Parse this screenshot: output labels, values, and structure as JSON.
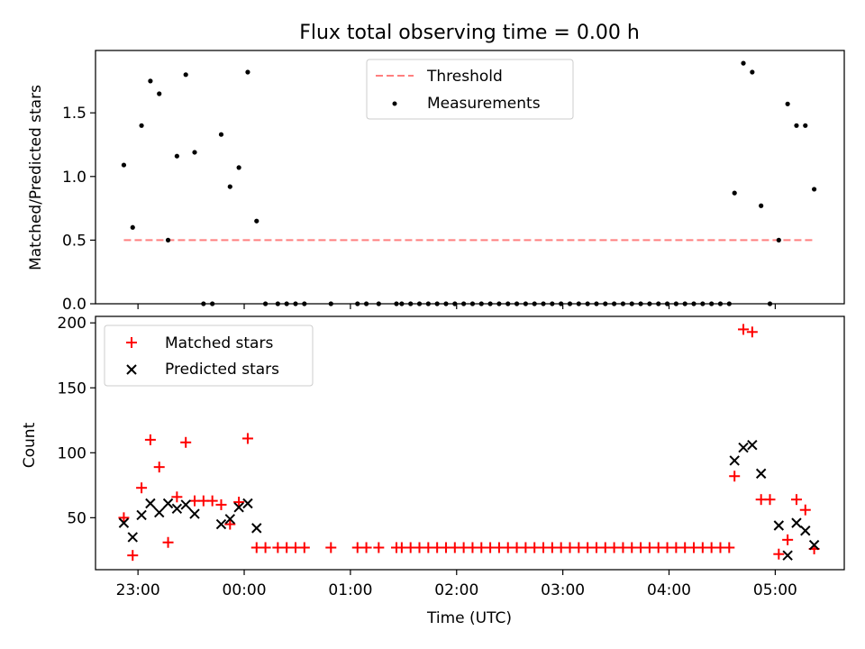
{
  "title": "Flux total observing time = 0.00 h",
  "colors": {
    "threshold": "#ff7f7f",
    "measurement": "#000000",
    "matched": "#ff0000",
    "predicted": "#000000"
  },
  "chart_data": [
    {
      "type": "scatter",
      "ylabel": "Matched/Predicted stars",
      "xlim": [
        22.6,
        5.65
      ],
      "ylim": [
        0,
        1.99
      ],
      "yticks": [
        0,
        0.5,
        1.0,
        1.5
      ],
      "ytick_labels": [
        "0.0",
        "0.5",
        "1.0",
        "1.5"
      ],
      "legend_position": "upper-center",
      "series": [
        {
          "name": "Threshold",
          "style": "dashed-line",
          "points": [
            [
              "22:52",
              0.5
            ],
            [
              "05:22",
              0.5
            ]
          ]
        },
        {
          "name": "Measurements",
          "style": "dot",
          "points": [
            [
              "22:52",
              1.09
            ],
            [
              "22:57",
              0.6
            ],
            [
              "23:02",
              1.4
            ],
            [
              "23:07",
              1.75
            ],
            [
              "23:12",
              1.65
            ],
            [
              "23:17",
              0.5
            ],
            [
              "23:22",
              1.16
            ],
            [
              "23:27",
              1.8
            ],
            [
              "23:32",
              1.19
            ],
            [
              "23:37",
              0.0
            ],
            [
              "23:42",
              0.0
            ],
            [
              "23:47",
              1.33
            ],
            [
              "23:52",
              0.92
            ],
            [
              "23:57",
              1.07
            ],
            [
              "00:02",
              1.82
            ],
            [
              "00:07",
              0.65
            ],
            [
              "00:12",
              0.0
            ],
            [
              "00:19",
              0.0
            ],
            [
              "00:24",
              0.0
            ],
            [
              "00:29",
              0.0
            ],
            [
              "00:34",
              0.0
            ],
            [
              "00:49",
              0.0
            ],
            [
              "01:04",
              0.0
            ],
            [
              "01:09",
              0.0
            ],
            [
              "01:16",
              0.0
            ],
            [
              "01:26",
              0.0
            ],
            [
              "01:29",
              0.0
            ],
            [
              "01:34",
              0.0
            ],
            [
              "01:39",
              0.0
            ],
            [
              "01:44",
              0.0
            ],
            [
              "01:49",
              0.0
            ],
            [
              "01:54",
              0.0
            ],
            [
              "01:59",
              0.0
            ],
            [
              "02:04",
              0.0
            ],
            [
              "02:09",
              0.0
            ],
            [
              "02:14",
              0.0
            ],
            [
              "02:19",
              0.0
            ],
            [
              "02:24",
              0.0
            ],
            [
              "02:29",
              0.0
            ],
            [
              "02:34",
              0.0
            ],
            [
              "02:39",
              0.0
            ],
            [
              "02:44",
              0.0
            ],
            [
              "02:49",
              0.0
            ],
            [
              "02:54",
              0.0
            ],
            [
              "02:59",
              0.0
            ],
            [
              "03:04",
              0.0
            ],
            [
              "03:09",
              0.0
            ],
            [
              "03:14",
              0.0
            ],
            [
              "03:19",
              0.0
            ],
            [
              "03:24",
              0.0
            ],
            [
              "03:29",
              0.0
            ],
            [
              "03:34",
              0.0
            ],
            [
              "03:39",
              0.0
            ],
            [
              "03:44",
              0.0
            ],
            [
              "03:49",
              0.0
            ],
            [
              "03:54",
              0.0
            ],
            [
              "03:59",
              0.0
            ],
            [
              "04:04",
              0.0
            ],
            [
              "04:09",
              0.0
            ],
            [
              "04:14",
              0.0
            ],
            [
              "04:19",
              0.0
            ],
            [
              "04:24",
              0.0
            ],
            [
              "04:29",
              0.0
            ],
            [
              "04:34",
              0.0
            ],
            [
              "04:37",
              0.87
            ],
            [
              "04:42",
              1.89
            ],
            [
              "04:47",
              1.82
            ],
            [
              "04:52",
              0.77
            ],
            [
              "04:57",
              0.0
            ],
            [
              "05:02",
              0.5
            ],
            [
              "05:07",
              1.57
            ],
            [
              "05:12",
              1.4
            ],
            [
              "05:17",
              1.4
            ],
            [
              "05:22",
              0.9
            ]
          ]
        }
      ]
    },
    {
      "type": "scatter",
      "xlabel": "Time (UTC)",
      "ylabel": "Count",
      "xlim": [
        22.6,
        5.65
      ],
      "ylim": [
        10,
        205
      ],
      "xticks": [
        "23:00",
        "00:00",
        "01:00",
        "02:00",
        "03:00",
        "04:00",
        "05:00"
      ],
      "yticks": [
        50,
        100,
        150,
        200
      ],
      "ytick_labels": [
        "50",
        "100",
        "150",
        "200"
      ],
      "legend_position": "upper-left",
      "series": [
        {
          "name": "Matched stars",
          "style": "plus",
          "points": [
            [
              "22:52",
              50
            ],
            [
              "22:57",
              21
            ],
            [
              "23:02",
              73
            ],
            [
              "23:07",
              110
            ],
            [
              "23:12",
              89
            ],
            [
              "23:17",
              31
            ],
            [
              "23:22",
              66
            ],
            [
              "23:27",
              108
            ],
            [
              "23:32",
              63
            ],
            [
              "23:37",
              63
            ],
            [
              "23:42",
              63
            ],
            [
              "23:47",
              60
            ],
            [
              "23:52",
              45
            ],
            [
              "23:57",
              62
            ],
            [
              "00:02",
              111
            ],
            [
              "00:07",
              27
            ],
            [
              "00:12",
              27
            ],
            [
              "00:19",
              27
            ],
            [
              "00:24",
              27
            ],
            [
              "00:29",
              27
            ],
            [
              "00:34",
              27
            ],
            [
              "00:49",
              27
            ],
            [
              "01:04",
              27
            ],
            [
              "01:09",
              27
            ],
            [
              "01:16",
              27
            ],
            [
              "01:26",
              27
            ],
            [
              "01:29",
              27
            ],
            [
              "01:34",
              27
            ],
            [
              "01:39",
              27
            ],
            [
              "01:44",
              27
            ],
            [
              "01:49",
              27
            ],
            [
              "01:54",
              27
            ],
            [
              "01:59",
              27
            ],
            [
              "02:04",
              27
            ],
            [
              "02:09",
              27
            ],
            [
              "02:14",
              27
            ],
            [
              "02:19",
              27
            ],
            [
              "02:24",
              27
            ],
            [
              "02:29",
              27
            ],
            [
              "02:34",
              27
            ],
            [
              "02:39",
              27
            ],
            [
              "02:44",
              27
            ],
            [
              "02:49",
              27
            ],
            [
              "02:54",
              27
            ],
            [
              "02:59",
              27
            ],
            [
              "03:04",
              27
            ],
            [
              "03:09",
              27
            ],
            [
              "03:14",
              27
            ],
            [
              "03:19",
              27
            ],
            [
              "03:24",
              27
            ],
            [
              "03:29",
              27
            ],
            [
              "03:34",
              27
            ],
            [
              "03:39",
              27
            ],
            [
              "03:44",
              27
            ],
            [
              "03:49",
              27
            ],
            [
              "03:54",
              27
            ],
            [
              "03:59",
              27
            ],
            [
              "04:04",
              27
            ],
            [
              "04:09",
              27
            ],
            [
              "04:14",
              27
            ],
            [
              "04:19",
              27
            ],
            [
              "04:24",
              27
            ],
            [
              "04:29",
              27
            ],
            [
              "04:34",
              27
            ],
            [
              "04:37",
              82
            ],
            [
              "04:42",
              195
            ],
            [
              "04:47",
              193
            ],
            [
              "04:52",
              64
            ],
            [
              "04:57",
              64
            ],
            [
              "05:02",
              22
            ],
            [
              "05:07",
              33
            ],
            [
              "05:12",
              64
            ],
            [
              "05:17",
              56
            ],
            [
              "05:22",
              26
            ]
          ]
        },
        {
          "name": "Predicted stars",
          "style": "cross",
          "points": [
            [
              "22:52",
              46
            ],
            [
              "22:57",
              35
            ],
            [
              "23:02",
              52
            ],
            [
              "23:07",
              61
            ],
            [
              "23:12",
              54
            ],
            [
              "23:17",
              61
            ],
            [
              "23:22",
              57
            ],
            [
              "23:27",
              60
            ],
            [
              "23:32",
              53
            ],
            [
              "23:47",
              45
            ],
            [
              "23:52",
              49
            ],
            [
              "23:57",
              58
            ],
            [
              "00:02",
              61
            ],
            [
              "00:07",
              42
            ],
            [
              "04:37",
              94
            ],
            [
              "04:42",
              104
            ],
            [
              "04:47",
              106
            ],
            [
              "04:52",
              84
            ],
            [
              "05:02",
              44
            ],
            [
              "05:07",
              21
            ],
            [
              "05:12",
              46
            ],
            [
              "05:17",
              40
            ],
            [
              "05:22",
              29
            ]
          ]
        }
      ]
    }
  ]
}
